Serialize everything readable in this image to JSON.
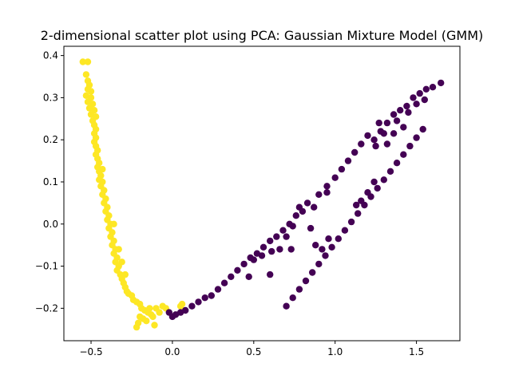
{
  "chart_data": {
    "type": "scatter",
    "title": "2-dimensional scatter plot using PCA: Gaussian Mixture Model (GMM)",
    "xlabel": "",
    "ylabel": "",
    "xlim": [
      -0.667,
      1.767
    ],
    "ylim": [
      -0.277,
      0.422
    ],
    "xticks": [
      {
        "value": -0.5,
        "label": "−0.5"
      },
      {
        "value": 0.0,
        "label": "0.0"
      },
      {
        "value": 0.5,
        "label": "0.5"
      },
      {
        "value": 1.0,
        "label": "1.0"
      },
      {
        "value": 1.5,
        "label": "1.5"
      }
    ],
    "yticks": [
      {
        "value": 0.4,
        "label": "0.4"
      },
      {
        "value": 0.3,
        "label": "0.3"
      },
      {
        "value": 0.2,
        "label": "0.2"
      },
      {
        "value": 0.1,
        "label": "0.1"
      },
      {
        "value": 0.0,
        "label": "0.0"
      },
      {
        "value": -0.1,
        "label": "−0.1"
      },
      {
        "value": -0.2,
        "label": "−0.2"
      }
    ],
    "grid": false,
    "series": [
      {
        "color": "#fde725",
        "points": [
          [
            -0.55,
            0.385
          ],
          [
            -0.52,
            0.385
          ],
          [
            -0.53,
            0.355
          ],
          [
            -0.52,
            0.34
          ],
          [
            -0.51,
            0.33
          ],
          [
            -0.5,
            0.315
          ],
          [
            -0.53,
            0.305
          ],
          [
            -0.5,
            0.3
          ],
          [
            -0.52,
            0.29
          ],
          [
            -0.49,
            0.285
          ],
          [
            -0.51,
            0.275
          ],
          [
            -0.48,
            0.27
          ],
          [
            -0.5,
            0.26
          ],
          [
            -0.47,
            0.255
          ],
          [
            -0.49,
            0.245
          ],
          [
            -0.48,
            0.235
          ],
          [
            -0.47,
            0.225
          ],
          [
            -0.48,
            0.215
          ],
          [
            -0.47,
            0.205
          ],
          [
            -0.48,
            0.195
          ],
          [
            -0.47,
            0.185
          ],
          [
            -0.46,
            0.175
          ],
          [
            -0.47,
            0.165
          ],
          [
            -0.46,
            0.155
          ],
          [
            -0.45,
            0.145
          ],
          [
            -0.46,
            0.135
          ],
          [
            -0.45,
            0.125
          ],
          [
            -0.44,
            0.115
          ],
          [
            -0.45,
            0.105
          ],
          [
            -0.43,
            0.1
          ],
          [
            -0.44,
            0.09
          ],
          [
            -0.42,
            0.08
          ],
          [
            -0.43,
            0.07
          ],
          [
            -0.41,
            0.06
          ],
          [
            -0.42,
            0.05
          ],
          [
            -0.4,
            0.04
          ],
          [
            -0.41,
            0.03
          ],
          [
            -0.39,
            0.02
          ],
          [
            -0.4,
            0.01
          ],
          [
            -0.38,
            0.0
          ],
          [
            -0.39,
            -0.01
          ],
          [
            -0.37,
            -0.02
          ],
          [
            -0.38,
            -0.03
          ],
          [
            -0.36,
            -0.04
          ],
          [
            -0.37,
            -0.05
          ],
          [
            -0.35,
            -0.06
          ],
          [
            -0.36,
            -0.07
          ],
          [
            -0.34,
            -0.08
          ],
          [
            -0.35,
            -0.09
          ],
          [
            -0.33,
            -0.1
          ],
          [
            -0.34,
            -0.11
          ],
          [
            -0.32,
            -0.12
          ],
          [
            -0.31,
            -0.13
          ],
          [
            -0.3,
            -0.14
          ],
          [
            -0.29,
            -0.15
          ],
          [
            -0.28,
            -0.16
          ],
          [
            -0.27,
            -0.165
          ],
          [
            -0.25,
            -0.17
          ],
          [
            -0.24,
            -0.18
          ],
          [
            -0.22,
            -0.185
          ],
          [
            -0.2,
            -0.19
          ],
          [
            -0.19,
            -0.2
          ],
          [
            -0.17,
            -0.205
          ],
          [
            -0.15,
            -0.21
          ],
          [
            -0.13,
            -0.215
          ],
          [
            -0.2,
            -0.22
          ],
          [
            -0.18,
            -0.225
          ],
          [
            -0.21,
            -0.235
          ],
          [
            -0.22,
            -0.245
          ],
          [
            -0.16,
            -0.23
          ],
          [
            -0.12,
            -0.22
          ],
          [
            -0.1,
            -0.2
          ],
          [
            -0.08,
            -0.21
          ],
          [
            -0.06,
            -0.195
          ],
          [
            -0.04,
            -0.2
          ],
          [
            0.05,
            -0.195
          ],
          [
            0.06,
            -0.19
          ],
          [
            -0.11,
            -0.24
          ],
          [
            -0.14,
            -0.2
          ],
          [
            -0.29,
            -0.12
          ],
          [
            -0.31,
            -0.09
          ],
          [
            -0.33,
            -0.06
          ],
          [
            -0.36,
            0.0
          ],
          [
            -0.43,
            0.13
          ],
          [
            -0.52,
            0.32
          ]
        ]
      },
      {
        "color": "#440154",
        "points": [
          [
            -0.02,
            -0.21
          ],
          [
            0.0,
            -0.22
          ],
          [
            0.02,
            -0.215
          ],
          [
            0.05,
            -0.21
          ],
          [
            0.08,
            -0.205
          ],
          [
            0.12,
            -0.195
          ],
          [
            0.16,
            -0.185
          ],
          [
            0.2,
            -0.175
          ],
          [
            0.24,
            -0.17
          ],
          [
            0.28,
            -0.155
          ],
          [
            0.32,
            -0.14
          ],
          [
            0.36,
            -0.125
          ],
          [
            0.4,
            -0.11
          ],
          [
            0.44,
            -0.095
          ],
          [
            0.48,
            -0.08
          ],
          [
            0.52,
            -0.07
          ],
          [
            0.56,
            -0.055
          ],
          [
            0.6,
            -0.04
          ],
          [
            0.64,
            -0.03
          ],
          [
            0.68,
            -0.015
          ],
          [
            0.72,
            0.0
          ],
          [
            0.76,
            0.02
          ],
          [
            0.8,
            0.03
          ],
          [
            0.55,
            -0.075
          ],
          [
            0.5,
            -0.085
          ],
          [
            0.47,
            -0.125
          ],
          [
            0.61,
            -0.065
          ],
          [
            0.66,
            -0.06
          ],
          [
            0.7,
            -0.03
          ],
          [
            0.74,
            -0.005
          ],
          [
            0.78,
            0.04
          ],
          [
            0.83,
            0.05
          ],
          [
            0.87,
            0.04
          ],
          [
            0.9,
            0.07
          ],
          [
            0.95,
            0.09
          ],
          [
            1.0,
            0.11
          ],
          [
            1.04,
            0.13
          ],
          [
            1.08,
            0.15
          ],
          [
            1.12,
            0.17
          ],
          [
            1.16,
            0.19
          ],
          [
            1.2,
            0.21
          ],
          [
            1.24,
            0.2
          ],
          [
            1.28,
            0.22
          ],
          [
            1.32,
            0.24
          ],
          [
            1.36,
            0.26
          ],
          [
            1.4,
            0.27
          ],
          [
            1.44,
            0.28
          ],
          [
            1.48,
            0.3
          ],
          [
            1.52,
            0.31
          ],
          [
            1.56,
            0.32
          ],
          [
            1.6,
            0.325
          ],
          [
            1.65,
            0.335
          ],
          [
            1.55,
            0.295
          ],
          [
            1.5,
            0.285
          ],
          [
            1.45,
            0.265
          ],
          [
            1.38,
            0.245
          ],
          [
            1.3,
            0.215
          ],
          [
            1.25,
            0.185
          ],
          [
            1.32,
            0.19
          ],
          [
            1.36,
            0.215
          ],
          [
            0.7,
            -0.195
          ],
          [
            0.74,
            -0.175
          ],
          [
            0.78,
            -0.155
          ],
          [
            0.82,
            -0.135
          ],
          [
            0.86,
            -0.115
          ],
          [
            0.9,
            -0.095
          ],
          [
            0.94,
            -0.075
          ],
          [
            0.98,
            -0.055
          ],
          [
            1.02,
            -0.035
          ],
          [
            1.06,
            -0.015
          ],
          [
            1.1,
            0.005
          ],
          [
            1.14,
            0.025
          ],
          [
            1.18,
            0.045
          ],
          [
            1.22,
            0.065
          ],
          [
            1.26,
            0.085
          ],
          [
            1.3,
            0.105
          ],
          [
            1.34,
            0.125
          ],
          [
            1.38,
            0.145
          ],
          [
            1.42,
            0.165
          ],
          [
            1.46,
            0.185
          ],
          [
            1.5,
            0.205
          ],
          [
            1.54,
            0.225
          ],
          [
            0.88,
            -0.05
          ],
          [
            0.92,
            -0.06
          ],
          [
            0.96,
            -0.035
          ],
          [
            1.16,
            0.055
          ],
          [
            1.2,
            0.075
          ],
          [
            1.24,
            0.1
          ],
          [
            1.13,
            0.045
          ],
          [
            0.95,
            0.075
          ],
          [
            0.6,
            -0.12
          ],
          [
            0.73,
            -0.06
          ],
          [
            0.85,
            -0.01
          ],
          [
            1.27,
            0.24
          ],
          [
            1.42,
            0.23
          ]
        ]
      }
    ]
  }
}
